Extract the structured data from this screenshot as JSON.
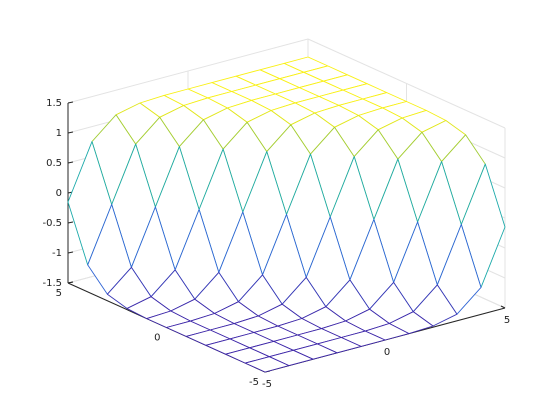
{
  "chart_data": {
    "type": "mesh",
    "x": [
      -5,
      -4,
      -3,
      -2,
      -1,
      0,
      1,
      2,
      3,
      4,
      5
    ],
    "y": [
      -5,
      -4,
      -3,
      -2,
      -1,
      0,
      1,
      2,
      3,
      4,
      5
    ],
    "z": [
      [
        -1.5,
        -1.5,
        -1.5,
        -1.5,
        -1.5,
        -1.5,
        -1.5,
        -1.48,
        -1.39,
        -1.05,
        -0.15
      ],
      [
        -1.5,
        -1.5,
        -1.5,
        -1.5,
        -1.5,
        -1.5,
        -1.48,
        -1.39,
        -1.05,
        -0.15,
        0.75
      ],
      [
        -1.5,
        -1.5,
        -1.5,
        -1.5,
        -1.5,
        -1.48,
        -1.39,
        -1.05,
        -0.15,
        0.75,
        1.09
      ],
      [
        -1.5,
        -1.5,
        -1.5,
        -1.5,
        -1.48,
        -1.39,
        -1.05,
        -0.15,
        0.75,
        1.09,
        1.18
      ],
      [
        -1.5,
        -1.5,
        -1.5,
        -1.48,
        -1.39,
        -1.05,
        -0.15,
        0.75,
        1.09,
        1.18,
        1.2
      ],
      [
        -1.5,
        -1.5,
        -1.48,
        -1.39,
        -1.05,
        -0.15,
        0.75,
        1.09,
        1.18,
        1.2,
        1.2
      ],
      [
        -1.5,
        -1.48,
        -1.39,
        -1.05,
        -0.15,
        0.75,
        1.09,
        1.18,
        1.2,
        1.2,
        1.2
      ],
      [
        -1.48,
        -1.39,
        -1.05,
        -0.15,
        0.75,
        1.09,
        1.18,
        1.2,
        1.2,
        1.2,
        1.2
      ],
      [
        -1.39,
        -1.05,
        -0.15,
        0.75,
        1.09,
        1.18,
        1.2,
        1.2,
        1.2,
        1.2,
        1.2
      ],
      [
        -1.05,
        -0.15,
        0.75,
        1.09,
        1.18,
        1.2,
        1.2,
        1.2,
        1.2,
        1.2,
        1.2
      ],
      [
        -0.15,
        0.75,
        1.09,
        1.18,
        1.2,
        1.2,
        1.2,
        1.2,
        1.2,
        1.2,
        1.2
      ]
    ],
    "xlim": [
      -5,
      5
    ],
    "ylim": [
      -5,
      5
    ],
    "zlim": [
      -1.5,
      1.5
    ],
    "xticks": [
      -5,
      0,
      5
    ],
    "yticks": [
      -5,
      0,
      5
    ],
    "zticks": [
      -1.5,
      -1,
      -0.5,
      0,
      0.5,
      1,
      1.5
    ],
    "grid": true
  }
}
